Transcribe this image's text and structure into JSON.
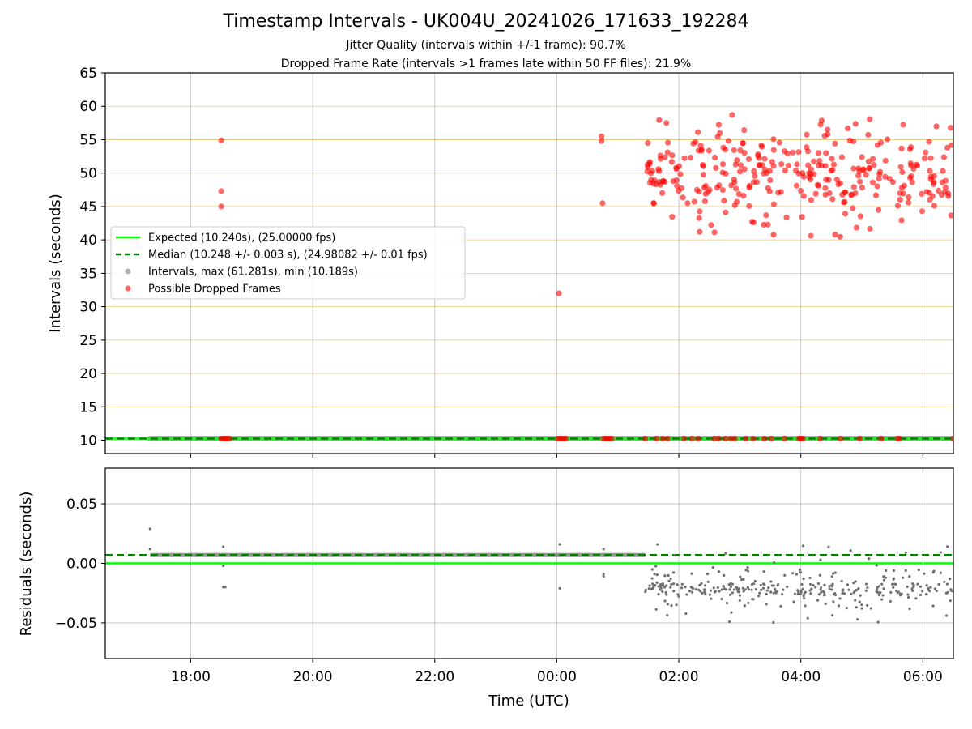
{
  "figure": {
    "title": "Timestamp Intervals - UK004U_20241026_171633_192284",
    "subtitle_jitter": "Jitter Quality (intervals within +/-1 frame): 90.7%",
    "subtitle_dropped": "Dropped Frame Rate (intervals >1 frames late within 50 FF files): 21.9%"
  },
  "chart_data": [
    {
      "type": "scatter",
      "panel": "top",
      "xlabel": "",
      "ylabel": "Intervals (seconds)",
      "x_range_hours": [
        16.6,
        30.5
      ],
      "ylim": [
        8,
        65
      ],
      "y_ticks": [
        10,
        15,
        20,
        25,
        30,
        35,
        40,
        45,
        50,
        55,
        60,
        65
      ],
      "y_tick_labels": [
        "10",
        "15",
        "20",
        "25",
        "30",
        "35",
        "40",
        "45",
        "50",
        "55",
        "60",
        "65"
      ],
      "grid": {
        "horizontal": "goldenrod",
        "vertical": "lightgray"
      },
      "legend": {
        "placement": "center-left",
        "entries": [
          {
            "label": "Expected (10.240s), (25.00000 fps)",
            "style": "solid-line",
            "color": "#00ff00"
          },
          {
            "label": "Median (10.248 +/- 0.003 s), (24.98082 +/- 0.01 fps)",
            "style": "dashed-line",
            "color": "#008000"
          },
          {
            "label": "Intervals, max (61.281s), min (10.189s)",
            "style": "marker",
            "color": "#808080"
          },
          {
            "label": "Possible Dropped Frames",
            "style": "marker",
            "color": "#ff0000"
          }
        ]
      },
      "reference_lines": {
        "expected": 10.24,
        "median": 10.248
      },
      "normal_intervals": {
        "from": "17:20",
        "to": "06:30",
        "value": 10.24,
        "color": "#808080"
      },
      "dropped_near_baseline_times": [
        "18:30",
        "18:32",
        "18:34",
        "18:36",
        "18:38",
        "00:01",
        "00:03",
        "00:05",
        "00:07",
        "00:09",
        "00:46",
        "00:48",
        "00:50",
        "00:52",
        "00:54",
        "01:27",
        "01:38",
        "01:44",
        "01:49",
        "02:05",
        "02:13",
        "02:19",
        "02:35",
        "02:39",
        "02:46",
        "02:51",
        "02:55",
        "03:06",
        "03:13",
        "03:24",
        "03:31",
        "03:44",
        "03:58",
        "04:00",
        "04:02",
        "04:19",
        "04:39",
        "04:58",
        "05:19",
        "05:35",
        "05:37",
        "06:30"
      ],
      "dropped_frames": [
        {
          "time": "18:30",
          "interval": 54.9
        },
        {
          "time": "18:30",
          "interval": 47.3
        },
        {
          "time": "18:30",
          "interval": 45.0
        },
        {
          "time": "00:02",
          "interval": 32.0
        },
        {
          "time": "00:44",
          "interval": 54.8
        },
        {
          "time": "00:44",
          "interval": 55.5
        },
        {
          "time": "00:45",
          "interval": 45.5
        }
      ],
      "dropped_cluster": {
        "from": "01:27",
        "to": "06:30",
        "y_min": 38.5,
        "y_max": 61.3,
        "y_center": 50,
        "count": 310,
        "seed": 7
      }
    },
    {
      "type": "scatter",
      "panel": "bottom",
      "xlabel": "Time (UTC)",
      "ylabel": "Residuals (seconds)",
      "x_range_hours": [
        16.6,
        30.5
      ],
      "ylim": [
        -0.08,
        0.08
      ],
      "y_ticks": [
        -0.05,
        0,
        0.05
      ],
      "y_tick_labels": [
        "−0.05",
        "0.00",
        "0.05"
      ],
      "x_ticks": [
        "18:00",
        "20:00",
        "22:00",
        "00:00",
        "02:00",
        "04:00",
        "06:00"
      ],
      "x_tick_hours": [
        18,
        20,
        22,
        24,
        26,
        28,
        30
      ],
      "reference_lines": {
        "expected": 0.0,
        "median": 0.007
      },
      "baseline_band": {
        "from": "17:20",
        "to": "01:27",
        "value": 0.007
      },
      "outliers": [
        {
          "time": "17:20",
          "residual": 0.029
        },
        {
          "time": "17:20",
          "residual": 0.012
        },
        {
          "time": "18:32",
          "residual": 0.014
        },
        {
          "time": "18:32",
          "residual": -0.002
        },
        {
          "time": "18:32",
          "residual": -0.02
        },
        {
          "time": "18:34",
          "residual": -0.02
        },
        {
          "time": "00:03",
          "residual": 0.016
        },
        {
          "time": "00:03",
          "residual": -0.021
        },
        {
          "time": "00:46",
          "residual": 0.012
        },
        {
          "time": "00:46",
          "residual": -0.009
        },
        {
          "time": "00:46",
          "residual": -0.011
        }
      ],
      "scatter_cluster": {
        "from": "01:27",
        "to": "06:30",
        "y_center": -0.022,
        "y_min": -0.051,
        "y_max": 0.017,
        "count": 330,
        "seed": 11
      }
    }
  ]
}
